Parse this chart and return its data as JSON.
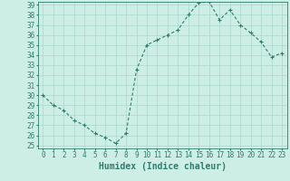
{
  "xlabel": "Humidex (Indice chaleur)",
  "x": [
    0,
    1,
    2,
    3,
    4,
    5,
    6,
    7,
    8,
    9,
    10,
    11,
    12,
    13,
    14,
    15,
    16,
    17,
    18,
    19,
    20,
    21,
    22,
    23
  ],
  "y": [
    30.0,
    29.0,
    28.5,
    27.5,
    27.0,
    26.2,
    25.8,
    25.2,
    26.2,
    32.5,
    35.0,
    35.5,
    36.0,
    36.5,
    38.0,
    39.2,
    39.3,
    37.5,
    38.5,
    37.0,
    36.2,
    35.3,
    33.8,
    34.2
  ],
  "ylim_min": 25,
  "ylim_max": 39,
  "xlim_min": 0,
  "xlim_max": 23,
  "line_color": "#2e7d6e",
  "bg_color": "#cceee4",
  "grid_color": "#aad8cc",
  "tick_label_fontsize": 5.5,
  "xlabel_fontsize": 7.0,
  "xtick_values": [
    0,
    1,
    2,
    3,
    4,
    5,
    6,
    7,
    8,
    9,
    10,
    11,
    12,
    13,
    14,
    15,
    16,
    17,
    18,
    19,
    20,
    21,
    22,
    23
  ]
}
